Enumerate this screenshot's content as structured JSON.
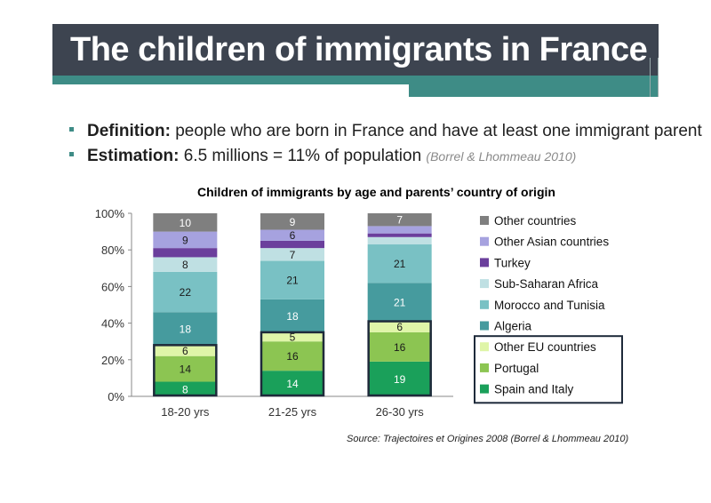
{
  "slide": {
    "title": "The children of immigrants in France",
    "bullets": [
      {
        "term": "Definition:",
        "text": " people who are born in France and have at least one immigrant parent",
        "source": ""
      },
      {
        "term": "Estimation:",
        "text": " 6.5 millions = 11% of population ",
        "source": "(Borrel & Lhommeau 2010)"
      }
    ]
  },
  "colors": {
    "title_bar": "#3d4450",
    "accent": "#3e8c86"
  },
  "chart_data": {
    "type": "bar",
    "stacked": true,
    "title": "Children of immigrants by age and parents’ country of origin",
    "source": "Source: Trajectoires et Origines 2008 (Borrel & Lhommeau 2010)",
    "categories": [
      "18-20 yrs",
      "21-25 yrs",
      "26-30 yrs"
    ],
    "ylim": [
      0,
      100
    ],
    "yticks": [
      "0%",
      "20%",
      "40%",
      "60%",
      "80%",
      "100%"
    ],
    "series": [
      {
        "name": "Spain and Italy",
        "color": "#1aa05a",
        "values": [
          8,
          14,
          19
        ],
        "labels": [
          "8",
          "14",
          "19"
        ],
        "label_color": "#ffffff"
      },
      {
        "name": "Portugal",
        "color": "#8cc552",
        "values": [
          14,
          16,
          16
        ],
        "labels": [
          "14",
          "16",
          "16"
        ],
        "label_color": "#1a1a1a"
      },
      {
        "name": "Other EU countries",
        "color": "#dff5a8",
        "values": [
          6,
          5,
          6
        ],
        "labels": [
          "6",
          "5",
          "6"
        ],
        "label_color": "#1a1a1a"
      },
      {
        "name": "Algeria",
        "color": "#469b9e",
        "values": [
          18,
          18,
          21
        ],
        "labels": [
          "18",
          "18",
          "21"
        ],
        "label_color": "#ffffff"
      },
      {
        "name": "Morocco and Tunisia",
        "color": "#79c1c4",
        "values": [
          22,
          21,
          21
        ],
        "labels": [
          "22",
          "21",
          "21"
        ],
        "label_color": "#1a1a1a"
      },
      {
        "name": "Sub-Saharan Africa",
        "color": "#bfe0e3",
        "values": [
          8,
          7,
          4
        ],
        "labels": [
          "8",
          "7",
          ""
        ],
        "label_color": "#1a1a1a"
      },
      {
        "name": "Turkey",
        "color": "#6b3f9c",
        "values": [
          5,
          4,
          2
        ],
        "labels": [
          "",
          "",
          ""
        ],
        "label_color": "#ffffff"
      },
      {
        "name": "Other Asian countries",
        "color": "#a6a2df",
        "values": [
          9,
          6,
          4
        ],
        "labels": [
          "9",
          "6",
          ""
        ],
        "label_color": "#1a1a1a"
      },
      {
        "name": "Other countries",
        "color": "#7f7f7f",
        "values": [
          10,
          9,
          7
        ],
        "labels": [
          "10",
          "9",
          "7"
        ],
        "label_color": "#ffffff"
      }
    ],
    "legend": {
      "placement": "right",
      "order": [
        "Other countries",
        "Other Asian countries",
        "Turkey",
        "Sub-Saharan Africa",
        "Morocco and Tunisia",
        "Algeria",
        "Other EU countries",
        "Portugal",
        "Spain and Italy"
      ],
      "boxed": [
        "Other EU countries",
        "Portugal",
        "Spain and Italy"
      ]
    }
  }
}
